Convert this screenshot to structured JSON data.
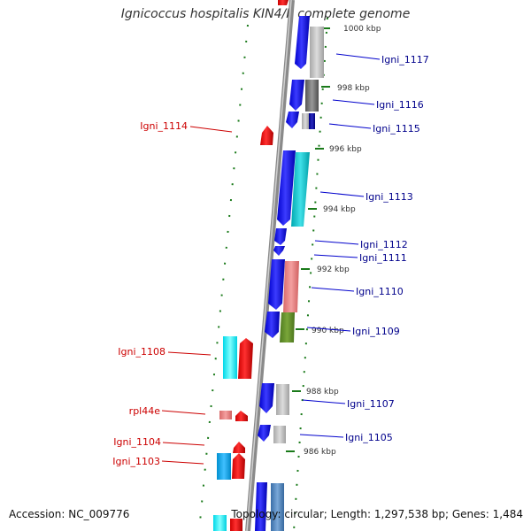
{
  "title": "Ignicoccus hospitalis KIN4/I, complete genome",
  "footer": {
    "accession": "Accession: NC_009776",
    "summary": "Topology: circular; Length: 1,297,538 bp; Genes: 1,484"
  },
  "scale_labels": [
    "1000 kbp",
    "998 kbp",
    "996 kbp",
    "994 kbp",
    "992 kbp",
    "990 kbp",
    "988 kbp",
    "986 kbp"
  ],
  "gene_labels_right": [
    "Igni_1117",
    "Igni_1116",
    "Igni_1115",
    "Igni_1113",
    "Igni_1112",
    "Igni_1111",
    "Igni_1110",
    "Igni_1109",
    "Igni_1107",
    "Igni_1105"
  ],
  "gene_labels_left": [
    "Igni_1114",
    "Igni_1108",
    "rpl44e",
    "Igni_1104",
    "Igni_1103"
  ],
  "colors": {
    "forward_cds": "#0000ee",
    "reverse_cds": "#ee0000",
    "backbone": "#888888",
    "ticks": "#1a7a1a",
    "right_label": "#00008b",
    "left_label": "#cc0000"
  }
}
